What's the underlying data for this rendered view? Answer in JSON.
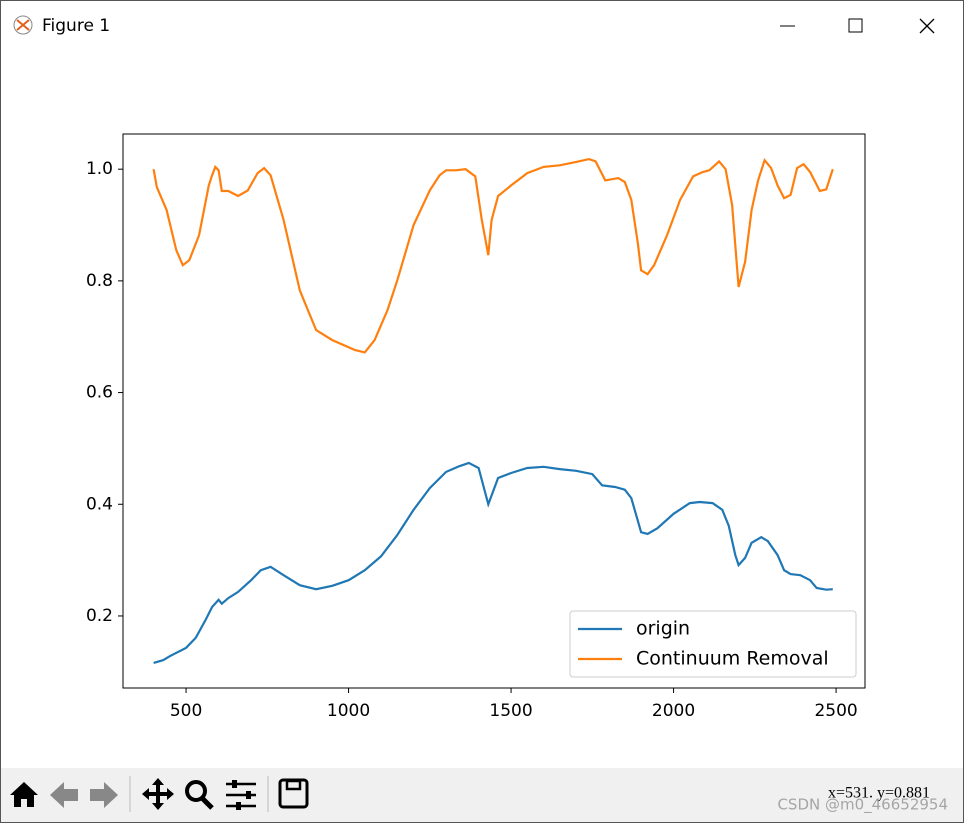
{
  "window": {
    "title": "Figure 1"
  },
  "status": "x=531.  y=0.881",
  "watermark": "CSDN @m0_46652954",
  "chart_data": {
    "type": "line",
    "xlim": [
      306,
      2589
    ],
    "ylim": [
      0.071,
      1.063
    ],
    "xticks": [
      500,
      1000,
      1500,
      2000,
      2500
    ],
    "yticks": [
      0.2,
      0.4,
      0.6,
      0.8,
      {
        "value": 1,
        "label": "1.0"
      }
    ],
    "legend": "lower right",
    "series": [
      {
        "name": "origin",
        "color": "#1f77b4",
        "x": [
          400,
          430,
          450,
          500,
          530,
          560,
          580,
          600,
          610,
          630,
          660,
          700,
          730,
          760,
          800,
          850,
          900,
          950,
          1000,
          1050,
          1100,
          1150,
          1200,
          1250,
          1300,
          1340,
          1370,
          1400,
          1430,
          1460,
          1500,
          1550,
          1600,
          1650,
          1700,
          1750,
          1780,
          1820,
          1850,
          1870,
          1900,
          1920,
          1950,
          2000,
          2050,
          2080,
          2120,
          2150,
          2170,
          2190,
          2200,
          2220,
          2240,
          2270,
          2290,
          2320,
          2340,
          2360,
          2390,
          2420,
          2440,
          2470,
          2490
        ],
        "values": [
          0.116,
          0.121,
          0.128,
          0.143,
          0.161,
          0.193,
          0.216,
          0.229,
          0.222,
          0.232,
          0.243,
          0.264,
          0.282,
          0.288,
          0.273,
          0.255,
          0.248,
          0.254,
          0.264,
          0.282,
          0.307,
          0.345,
          0.39,
          0.429,
          0.458,
          0.468,
          0.474,
          0.465,
          0.4,
          0.447,
          0.456,
          0.465,
          0.467,
          0.463,
          0.46,
          0.454,
          0.434,
          0.431,
          0.426,
          0.411,
          0.35,
          0.347,
          0.357,
          0.383,
          0.402,
          0.404,
          0.402,
          0.39,
          0.361,
          0.309,
          0.291,
          0.304,
          0.331,
          0.341,
          0.334,
          0.309,
          0.282,
          0.275,
          0.273,
          0.264,
          0.25,
          0.247,
          0.248
        ]
      },
      {
        "name": "Continuum Removal",
        "color": "#ff7f0e",
        "x": [
          400,
          410,
          440,
          470,
          490,
          510,
          540,
          570,
          580,
          590,
          600,
          610,
          630,
          660,
          690,
          720,
          740,
          760,
          800,
          850,
          900,
          950,
          1000,
          1020,
          1050,
          1080,
          1120,
          1150,
          1200,
          1250,
          1280,
          1300,
          1330,
          1360,
          1390,
          1410,
          1430,
          1440,
          1460,
          1500,
          1550,
          1600,
          1650,
          1700,
          1740,
          1760,
          1790,
          1830,
          1850,
          1870,
          1890,
          1900,
          1920,
          1940,
          1980,
          2020,
          2060,
          2090,
          2110,
          2140,
          2160,
          2180,
          2200,
          2220,
          2240,
          2260,
          2280,
          2300,
          2320,
          2340,
          2360,
          2380,
          2400,
          2420,
          2450,
          2470,
          2490
        ],
        "values": [
          1.0,
          0.968,
          0.927,
          0.855,
          0.828,
          0.837,
          0.882,
          0.971,
          0.989,
          1.004,
          0.998,
          0.961,
          0.961,
          0.952,
          0.962,
          0.993,
          1.002,
          0.989,
          0.909,
          0.783,
          0.712,
          0.694,
          0.681,
          0.676,
          0.672,
          0.694,
          0.748,
          0.801,
          0.9,
          0.962,
          0.989,
          0.998,
          0.998,
          1.0,
          0.987,
          0.909,
          0.846,
          0.909,
          0.952,
          0.971,
          0.993,
          1.004,
          1.007,
          1.013,
          1.018,
          1.014,
          0.98,
          0.984,
          0.977,
          0.945,
          0.868,
          0.819,
          0.812,
          0.828,
          0.882,
          0.945,
          0.987,
          0.995,
          0.998,
          1.014,
          1.0,
          0.936,
          0.789,
          0.834,
          0.927,
          0.98,
          1.016,
          1.002,
          0.971,
          0.948,
          0.954,
          1.002,
          1.009,
          0.995,
          0.961,
          0.964,
          1.0
        ]
      }
    ]
  }
}
